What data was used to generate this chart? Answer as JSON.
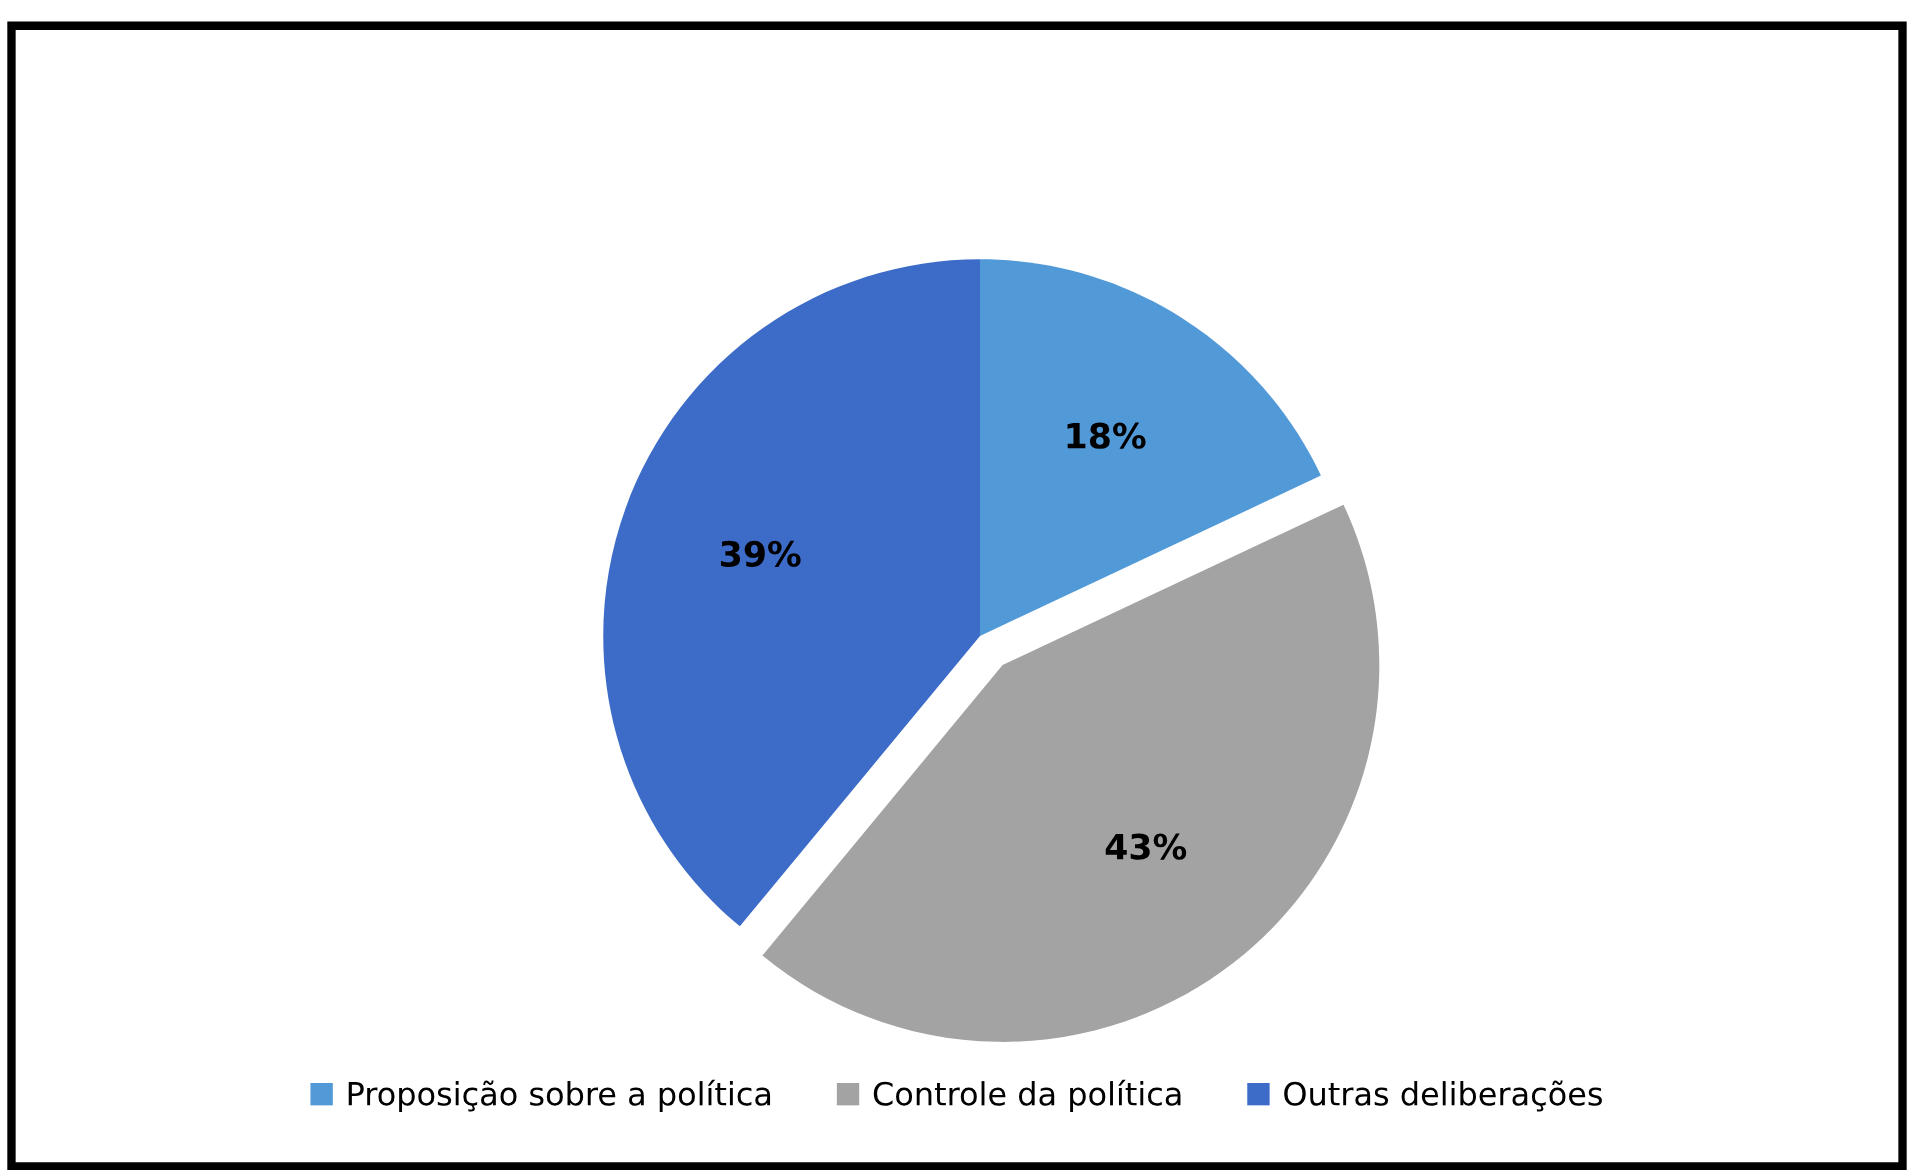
{
  "chart_data": {
    "type": "pie",
    "categories": [
      "Proposição sobre a política",
      "Controle da política",
      "Outras deliberações"
    ],
    "values": [
      18,
      43,
      39
    ],
    "colors": [
      "#5299d8",
      "#a3a3a3",
      "#3d6cc8"
    ],
    "value_labels": [
      "18%",
      "43%",
      "39%"
    ],
    "legend": "bottom"
  }
}
